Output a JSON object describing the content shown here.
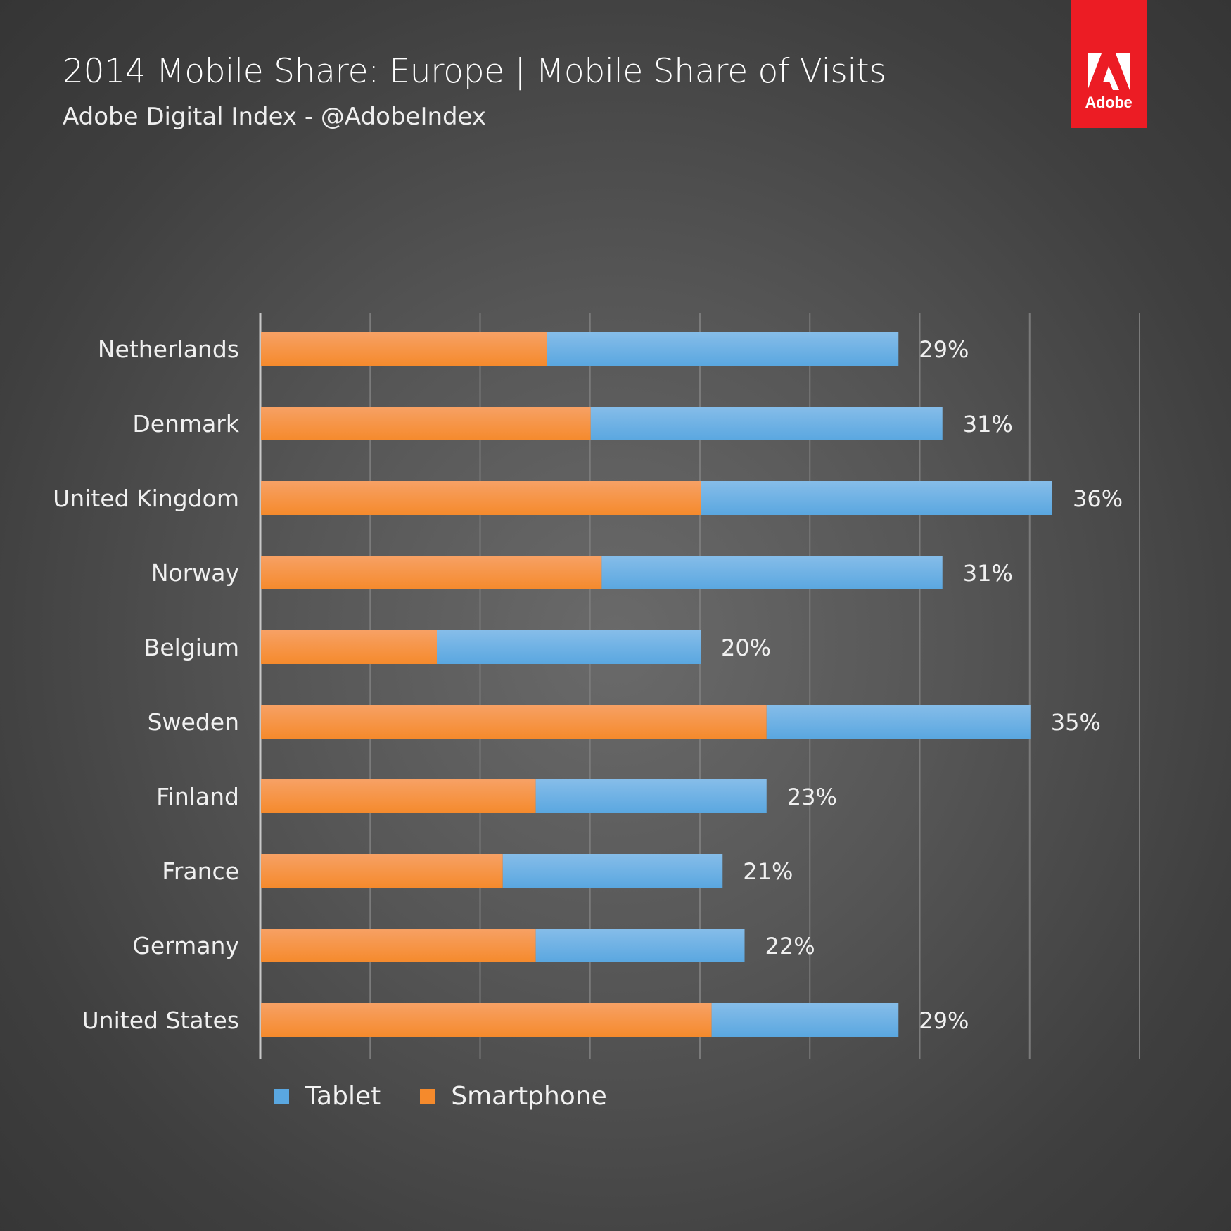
{
  "header": {
    "title": "2014 Mobile Share: Europe | Mobile Share of Visits",
    "subtitle": "Adobe Digital Index - @AdobeIndex"
  },
  "brand": {
    "logo_text": "Adobe",
    "color": "#ec1c24"
  },
  "colors": {
    "smartphone": "#f58a2c",
    "tablet": "#5aa7e0",
    "grid": "#7a7a7a",
    "axis": "#c8c8c8"
  },
  "legend": {
    "tablet_label": "Tablet",
    "smartphone_label": "Smartphone"
  },
  "chart_data": {
    "type": "bar",
    "orientation": "horizontal",
    "stacked": true,
    "title": "2014 Mobile Share: Europe | Mobile Share of Visits",
    "xlabel": "",
    "ylabel": "",
    "xlim": [
      0,
      40
    ],
    "grid": true,
    "legend_position": "bottom-left",
    "categories": [
      "Netherlands",
      "Denmark",
      "United Kingdom",
      "Norway",
      "Belgium",
      "Sweden",
      "Finland",
      "France",
      "Germany",
      "United States"
    ],
    "series": [
      {
        "name": "Smartphone",
        "values": [
          13,
          15,
          20,
          15.5,
          8,
          23,
          12.5,
          11,
          12.5,
          20.5
        ]
      },
      {
        "name": "Tablet",
        "values": [
          16,
          16,
          16,
          15.5,
          12,
          12,
          10.5,
          10,
          9.5,
          8.5
        ]
      }
    ],
    "totals": [
      29,
      31,
      36,
      31,
      20,
      35,
      23,
      21,
      22,
      29
    ],
    "data_labels": [
      "29%",
      "31%",
      "36%",
      "31%",
      "20%",
      "35%",
      "23%",
      "21%",
      "22%",
      "29%"
    ]
  }
}
